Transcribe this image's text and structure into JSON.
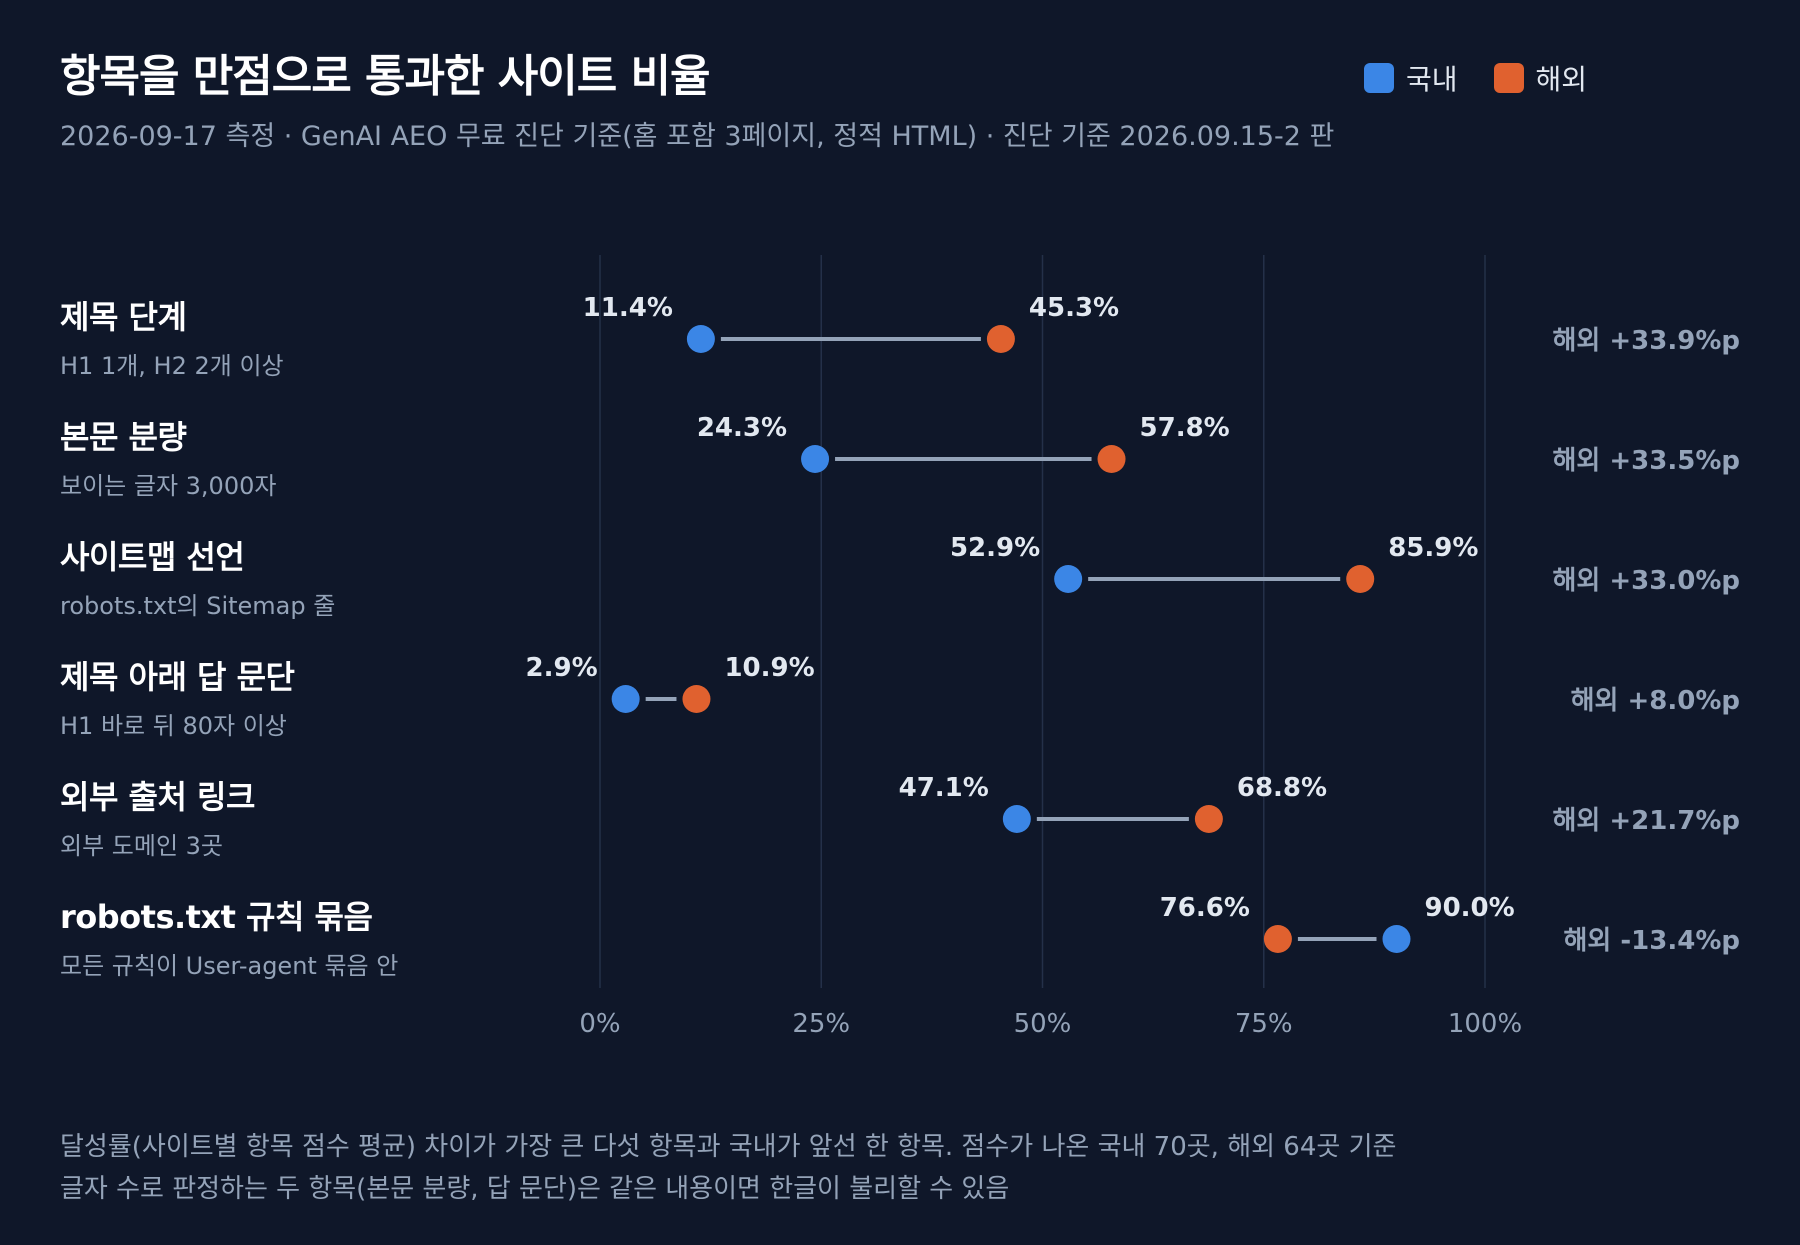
{
  "header": {
    "title": "항목을 만점으로 통과한 사이트 비율",
    "subtitle": "2026-09-17 측정 · GenAI AEO 무료 진단 기준(홈 포함 3페이지, 정적 HTML) · 진단 기준 2026.09.15-2 판"
  },
  "legend": [
    {
      "label": "국내",
      "color": "#3b86e6"
    },
    {
      "label": "해외",
      "color": "#e0612f"
    }
  ],
  "rows": [
    {
      "name": "제목 단계",
      "sub": "H1 1개, H2 2개 이상"
    },
    {
      "name": "본문 분량",
      "sub": "보이는 글자 3,000자"
    },
    {
      "name": "사이트맵 선언",
      "sub": "robots.txt의 Sitemap 줄"
    },
    {
      "name": "제목 아래 답 문단",
      "sub": "H1 바로 뒤 80자 이상"
    },
    {
      "name": "외부 출처 링크",
      "sub": "외부 도메인 3곳"
    },
    {
      "name": "robots.txt 규칙 묶음",
      "sub": "모든 규칙이 User-agent 묶음 안"
    }
  ],
  "chart_data": {
    "type": "dumbbell",
    "categories": [
      "제목 단계",
      "본문 분량",
      "사이트맵 선언",
      "제목 아래 답 문단",
      "외부 출처 링크",
      "robots.txt 규칙 묶음"
    ],
    "series": [
      {
        "name": "국내",
        "values": [
          11.4,
          24.3,
          52.9,
          2.9,
          47.1,
          90.0
        ],
        "labels": [
          "11.4%",
          "24.3%",
          "52.9%",
          "2.9%",
          "47.1%",
          "90.0%"
        ],
        "color": "#3b86e6"
      },
      {
        "name": "해외",
        "values": [
          45.3,
          57.8,
          85.9,
          10.9,
          68.8,
          76.6
        ],
        "labels": [
          "45.3%",
          "57.8%",
          "85.9%",
          "10.9%",
          "68.8%",
          "76.6%"
        ],
        "color": "#e0612f"
      }
    ],
    "differences": [
      "해외 +33.9%p",
      "해외 +33.5%p",
      "해외 +33.0%p",
      "해외 +8.0%p",
      "해외 +21.7%p",
      "해외 -13.4%p"
    ],
    "xlim": [
      0,
      100
    ],
    "xticks": [
      0,
      25,
      50,
      75,
      100
    ],
    "xtick_labels": [
      "0%",
      "25%",
      "50%",
      "75%",
      "100%"
    ],
    "grid": true,
    "connector_color": "#94a3b8"
  },
  "footnote": {
    "line1": "달성률(사이트별 항목 점수 평균) 차이가 가장 큰 다섯 항목과 국내가 앞선 한 항목. 점수가 나온 국내 70곳, 해외 64곳 기준",
    "line2": "글자 수로 판정하는 두 항목(본문 분량, 답 문단)은 같은 내용이면 한글이 불리할 수 있음"
  }
}
